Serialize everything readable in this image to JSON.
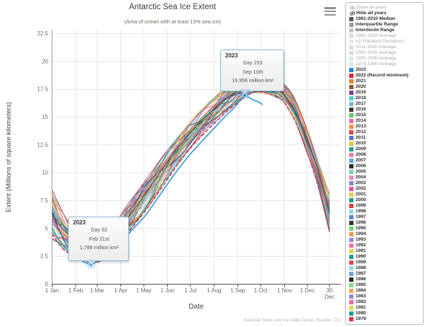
{
  "header": {
    "title": "Antarctic Sea Ice Extent",
    "subtitle": "(Area of ocean with at least 15% sea ice)"
  },
  "footer": {
    "credit": "National Snow and Ice Data Center, Boulder, CO"
  },
  "menu": {
    "icon": "hamburger-icon"
  },
  "legend": {
    "controls": [
      {
        "label": "Show all years",
        "icon": "eye-icon",
        "enabled": false
      },
      {
        "label": "Hide all years",
        "icon": "eye-slash-icon",
        "enabled": true
      }
    ],
    "stats": [
      {
        "label": "1981-2010 Median",
        "color": "#5a5a5a",
        "enabled": true
      },
      {
        "label": "Interquartile Range",
        "color": "#9b9b9b",
        "enabled": true
      },
      {
        "label": "Interdecile Range",
        "color": "#c6c6c6",
        "enabled": true
      },
      {
        "label": "1981-2010 Average",
        "color": "#dedede",
        "enabled": false
      },
      {
        "label": "±2 Standard Deviations",
        "color": "#e9e9e9",
        "enabled": false
      },
      {
        "label": "2011-2020 Average",
        "color": "#eed5d5",
        "enabled": false
      },
      {
        "label": "2001-2010 Average",
        "color": "#d5dcee",
        "enabled": false
      },
      {
        "label": "1991-2000 Average",
        "color": "#d3ecd9",
        "enabled": false
      },
      {
        "label": "1979-1990 Average",
        "color": "#d2e7f2",
        "enabled": false
      }
    ],
    "years": [
      {
        "label": "2023",
        "color": "#1d86d8"
      },
      {
        "label": "2022 (Record minimum)",
        "color": "#e8232e"
      },
      {
        "label": "2021",
        "color": "#e87f2e"
      },
      {
        "label": "2020",
        "color": "#8a5a3a"
      },
      {
        "label": "2019",
        "color": "#7c3f97"
      },
      {
        "label": "2018",
        "color": "#4ed4c4"
      },
      {
        "label": "2017",
        "color": "#7fb2e5"
      },
      {
        "label": "2016",
        "color": "#3a3a3a"
      },
      {
        "label": "2015",
        "color": "#63c563"
      },
      {
        "label": "2014",
        "color": "#ee68a6"
      },
      {
        "label": "2013",
        "color": "#f0913f"
      },
      {
        "label": "2012",
        "color": "#e04343"
      },
      {
        "label": "2011",
        "color": "#4d77d0"
      },
      {
        "label": "2010",
        "color": "#e2c443"
      },
      {
        "label": "2009",
        "color": "#22a08c"
      },
      {
        "label": "2008",
        "color": "#f279a2"
      },
      {
        "label": "2007",
        "color": "#5fa6e6"
      },
      {
        "label": "2006",
        "color": "#303030"
      },
      {
        "label": "2005",
        "color": "#6fd6a4"
      },
      {
        "label": "2004",
        "color": "#ef86b8"
      },
      {
        "label": "2003",
        "color": "#8186dd"
      },
      {
        "label": "2002",
        "color": "#e8549a"
      },
      {
        "label": "2001",
        "color": "#e4cc50"
      },
      {
        "label": "2000",
        "color": "#1c9c8a"
      },
      {
        "label": "1999",
        "color": "#e23c3c"
      },
      {
        "label": "1998",
        "color": "#84dbe6"
      },
      {
        "label": "1997",
        "color": "#5c82d8"
      },
      {
        "label": "1996",
        "color": "#323232"
      },
      {
        "label": "1995",
        "color": "#66dd66"
      },
      {
        "label": "1994",
        "color": "#f59550"
      },
      {
        "label": "1993",
        "color": "#8a8ae8"
      },
      {
        "label": "1992",
        "color": "#f170ab"
      },
      {
        "label": "1991",
        "color": "#e8d34e"
      },
      {
        "label": "1990",
        "color": "#1ea28d"
      },
      {
        "label": "1989",
        "color": "#e84343"
      },
      {
        "label": "1988",
        "color": "#92d9e9"
      },
      {
        "label": "1987",
        "color": "#6d9ee2"
      },
      {
        "label": "1986",
        "color": "#282828"
      },
      {
        "label": "1985",
        "color": "#80d980"
      },
      {
        "label": "1984",
        "color": "#f5a44a"
      },
      {
        "label": "1983",
        "color": "#9087e3"
      },
      {
        "label": "1982",
        "color": "#ee62a2"
      },
      {
        "label": "1981",
        "color": "#e9d052"
      },
      {
        "label": "1980",
        "color": "#18a088"
      },
      {
        "label": "1979",
        "color": "#e8343f"
      }
    ]
  },
  "chart_data": {
    "type": "line",
    "title": "Antarctic Sea Ice Extent",
    "subtitle": "(Area of ocean with at least 15% sea ice)",
    "xlabel": "Date",
    "ylabel": "Extent (Millions of square kilometers)",
    "ylim": [
      0,
      22.5
    ],
    "grid": true,
    "legend_position": "right",
    "y_ticks": [
      0,
      2.5,
      5,
      7.5,
      10,
      12.5,
      15,
      17.5,
      20,
      22.5
    ],
    "x_ticks": [
      {
        "day": 1,
        "label": "1 Jan"
      },
      {
        "day": 32,
        "label": "1 Feb"
      },
      {
        "day": 60,
        "label": "1 Mar"
      },
      {
        "day": 91,
        "label": "1 Apr"
      },
      {
        "day": 121,
        "label": "1 May"
      },
      {
        "day": 152,
        "label": "1 Jun"
      },
      {
        "day": 182,
        "label": "1 Jul"
      },
      {
        "day": 213,
        "label": "1 Aug"
      },
      {
        "day": 244,
        "label": "1 Sep"
      },
      {
        "day": 274,
        "label": "1 Oct"
      },
      {
        "day": 305,
        "label": "1 Nov"
      },
      {
        "day": 335,
        "label": "1 Dec"
      },
      {
        "day": 364,
        "label": "30 Dec",
        "two_line": true
      }
    ],
    "series": [
      {
        "name": "2023",
        "color": "#2e97e0",
        "style": "solid",
        "width": 1.6,
        "days": [
          1,
          10,
          20,
          32,
          40,
          46,
          52,
          58,
          66,
          75,
          91,
          106,
          121,
          137,
          152,
          167,
          182,
          198,
          213,
          228,
          240,
          248,
          253,
          258,
          264,
          270,
          276
        ],
        "values": [
          5.0,
          4.0,
          3.1,
          2.5,
          2.1,
          1.9,
          1.788,
          1.95,
          2.3,
          2.8,
          3.8,
          4.9,
          6.0,
          7.5,
          9.0,
          10.4,
          11.7,
          12.9,
          14.0,
          15.1,
          15.9,
          16.6,
          16.956,
          16.8,
          16.55,
          16.4,
          16.15
        ]
      },
      {
        "name": "2022 (Record minimum)",
        "color": "#e8232e",
        "style": "dashed",
        "width": 1.3,
        "days": [
          1,
          15,
          32,
          45,
          56,
          62,
          75,
          91,
          106,
          121,
          137,
          152,
          167,
          182,
          198,
          213,
          228,
          244,
          258,
          268,
          280,
          295,
          305,
          320,
          335,
          350,
          364
        ],
        "values": [
          4.5,
          3.2,
          2.5,
          2.05,
          1.92,
          2.0,
          2.6,
          3.9,
          5.1,
          6.4,
          7.9,
          9.4,
          10.9,
          12.2,
          13.4,
          14.4,
          15.4,
          16.3,
          17.0,
          17.3,
          17.2,
          16.8,
          16.3,
          14.5,
          11.8,
          8.6,
          4.7
        ]
      },
      {
        "name": "1981-2010 Median",
        "color": "#4f4f4f",
        "style": "solid",
        "width": 1.2,
        "days": [
          1,
          16,
          32,
          46,
          55,
          64,
          75,
          91,
          106,
          121,
          137,
          152,
          167,
          182,
          198,
          213,
          228,
          244,
          258,
          268,
          280,
          295,
          305,
          320,
          335,
          350,
          364
        ],
        "values": [
          6.3,
          4.9,
          3.9,
          3.3,
          3.1,
          3.2,
          3.7,
          5.1,
          6.5,
          7.9,
          9.5,
          11.0,
          12.4,
          13.6,
          14.8,
          15.7,
          16.6,
          17.4,
          17.9,
          18.0,
          17.9,
          17.5,
          17.0,
          15.4,
          13.0,
          9.9,
          6.5
        ]
      }
    ],
    "other_years_envelope": {
      "note": "approximate spread of the 1979-2021 annual curves read from the plot",
      "days": [
        1,
        16,
        32,
        46,
        55,
        64,
        75,
        91,
        106,
        121,
        137,
        152,
        167,
        182,
        198,
        213,
        228,
        244,
        258,
        268,
        280,
        295,
        305,
        320,
        335,
        350,
        364
      ],
      "min": [
        3.9,
        3.0,
        2.5,
        2.15,
        2.0,
        2.1,
        2.5,
        3.9,
        5.1,
        6.4,
        7.9,
        9.4,
        10.9,
        12.2,
        13.4,
        14.4,
        15.4,
        16.3,
        17.0,
        17.2,
        17.1,
        16.7,
        16.2,
        14.4,
        11.6,
        8.4,
        4.6
      ],
      "max": [
        8.6,
        6.4,
        4.7,
        3.95,
        3.7,
        3.9,
        4.5,
        6.3,
        7.8,
        9.2,
        10.7,
        12.1,
        13.4,
        14.7,
        15.8,
        16.8,
        17.7,
        18.3,
        18.6,
        18.7,
        18.6,
        18.3,
        18.0,
        16.5,
        13.9,
        10.9,
        8.2
      ]
    },
    "tooltips": [
      {
        "year": "2023",
        "day_label": "Day 52",
        "date_label": "Feb 21st",
        "value_label": "1.788 million km²",
        "anchor_day": 52,
        "anchor_value": 1.788
      },
      {
        "year": "2023",
        "day_label": "Day 253",
        "date_label": "Sep 10th",
        "value_label": "16.956 million km²",
        "anchor_day": 253,
        "anchor_value": 16.956
      }
    ]
  }
}
